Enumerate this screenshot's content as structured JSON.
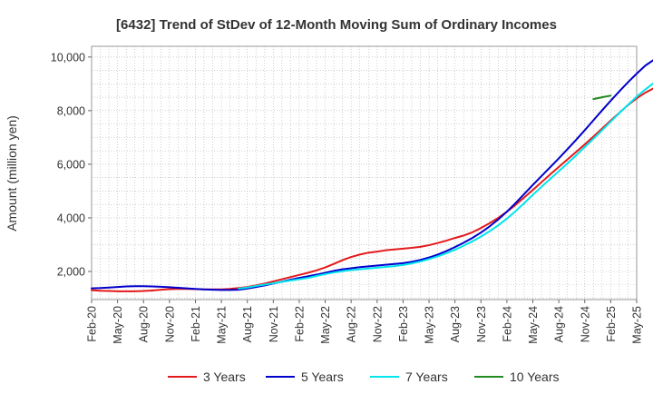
{
  "chart_data": {
    "type": "line",
    "title": "[6432]  Trend of StDev of 12-Month Moving Sum of Ordinary Incomes",
    "xlabel": "",
    "ylabel": "Amount (million yen)",
    "x_ticks": [
      "Feb-20",
      "May-20",
      "Aug-20",
      "Nov-20",
      "Feb-21",
      "May-21",
      "Aug-21",
      "Nov-21",
      "Feb-22",
      "May-22",
      "Aug-22",
      "Nov-22",
      "Feb-23",
      "May-23",
      "Aug-23",
      "Nov-23",
      "Feb-24",
      "May-24",
      "Aug-24",
      "Nov-24",
      "Feb-25",
      "May-25"
    ],
    "y_ticks": [
      2000,
      4000,
      6000,
      8000,
      10000
    ],
    "y_tick_labels": [
      "2,000",
      "4,000",
      "6,000",
      "8,000",
      "10,000"
    ],
    "ylim": [
      950,
      10400
    ],
    "grid": true,
    "legend_position": "bottom",
    "series": [
      {
        "name": "3 Years",
        "color": "#e31a1c",
        "start": "Feb-20",
        "values": [
          1300,
          1280,
          1270,
          1260,
          1260,
          1260,
          1270,
          1290,
          1320,
          1340,
          1350,
          1350,
          1340,
          1330,
          1330,
          1330,
          1350,
          1380,
          1420,
          1480,
          1550,
          1630,
          1710,
          1790,
          1870,
          1950,
          2040,
          2150,
          2280,
          2420,
          2540,
          2630,
          2700,
          2740,
          2790,
          2820,
          2850,
          2880,
          2920,
          2980,
          3060,
          3150,
          3250,
          3340,
          3460,
          3620,
          3800,
          4000,
          4230,
          4480,
          4760,
          5040,
          5330,
          5620,
          5900,
          6180,
          6460,
          6740,
          7030,
          7330,
          7630,
          7920,
          8210,
          8460,
          8670,
          8840,
          8920,
          8930,
          8870,
          8800
        ]
      },
      {
        "name": "5 Years",
        "color": "#0000cc",
        "start": "Feb-20",
        "values": [
          1370,
          1380,
          1400,
          1420,
          1440,
          1450,
          1450,
          1440,
          1430,
          1410,
          1390,
          1370,
          1350,
          1330,
          1320,
          1310,
          1310,
          1320,
          1360,
          1420,
          1480,
          1550,
          1620,
          1690,
          1760,
          1820,
          1880,
          1950,
          2020,
          2080,
          2120,
          2160,
          2190,
          2220,
          2250,
          2280,
          2310,
          2360,
          2430,
          2520,
          2630,
          2760,
          2910,
          3070,
          3250,
          3450,
          3680,
          3940,
          4230,
          4550,
          4890,
          5230,
          5560,
          5890,
          6220,
          6560,
          6910,
          7270,
          7640,
          8010,
          8370,
          8720,
          9060,
          9380,
          9680,
          9900,
          10040,
          10100,
          10120
        ]
      },
      {
        "name": "7 Years",
        "color": "#00e5ee",
        "start": "Jul-21",
        "values": [
          1360,
          1400,
          1460,
          1510,
          1560,
          1610,
          1660,
          1710,
          1760,
          1830,
          1900,
          1960,
          2010,
          2050,
          2080,
          2110,
          2140,
          2170,
          2200,
          2240,
          2300,
          2370,
          2460,
          2560,
          2680,
          2810,
          2960,
          3120,
          3300,
          3500,
          3720,
          3970,
          4250,
          4550,
          4860,
          5160,
          5450,
          5740,
          6030,
          6330,
          6640,
          6950,
          7270,
          7590,
          7910,
          8220,
          8520,
          8790,
          9040,
          9240,
          9380,
          9450
        ]
      },
      {
        "name": "10 Years",
        "color": "#228b22",
        "start": "Dec-24",
        "values": [
          8430,
          8500,
          8560
        ]
      }
    ]
  }
}
